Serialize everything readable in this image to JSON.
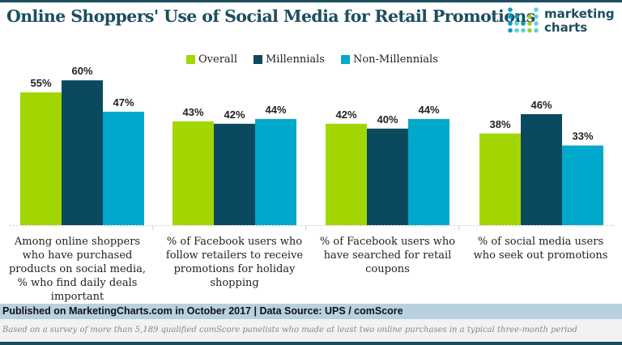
{
  "title": "Online Shoppers' Use of Social Media for Retail Promotions",
  "logo": {
    "line1": "marketing",
    "line2": "charts"
  },
  "chart_data": {
    "type": "bar",
    "categories": [
      "Among online shoppers who have purchased products on social media, % who find daily deals important",
      "% of Facebook users who follow retailers to receive promotions for holiday shopping",
      "% of Facebook users who have searched for retail coupons",
      "% of social media users who seek out promotions"
    ],
    "series": [
      {
        "name": "Overall",
        "color": "#a3d600",
        "values": [
          55,
          43,
          42,
          38
        ]
      },
      {
        "name": "Millennials",
        "color": "#0b4a5e",
        "values": [
          60,
          42,
          40,
          46
        ]
      },
      {
        "name": "Non-Millennials",
        "color": "#00a8cb",
        "values": [
          47,
          44,
          44,
          33
        ]
      }
    ],
    "value_format": "%",
    "ylim": [
      0,
      100
    ],
    "grid": false,
    "legend": "top-center"
  },
  "footer": {
    "published": "Published on MarketingCharts.com in October 2017 | Data Source: UPS / comScore",
    "note": "Based on a survey of more than 5,189 qualified comScore panelists who made at least two online purchases in a typical three-month period"
  }
}
